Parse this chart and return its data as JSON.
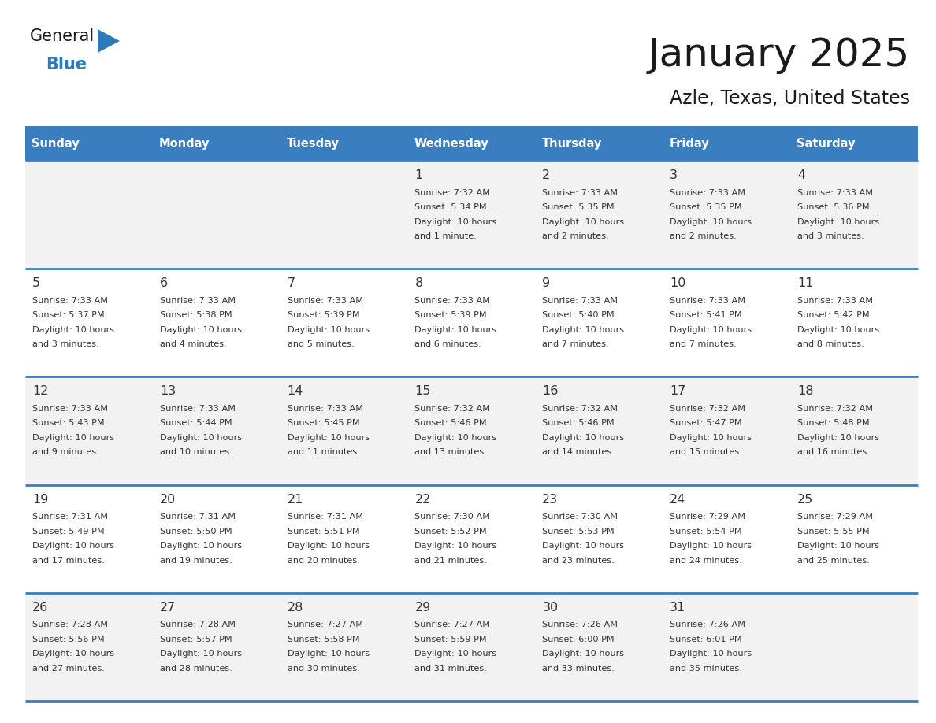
{
  "title": "January 2025",
  "subtitle": "Azle, Texas, United States",
  "header_bg": "#3a7ebf",
  "header_text": "#ffffff",
  "row_bg_odd": "#f2f2f2",
  "row_bg_even": "#ffffff",
  "cell_border": "#3a7ebf",
  "day_names": [
    "Sunday",
    "Monday",
    "Tuesday",
    "Wednesday",
    "Thursday",
    "Friday",
    "Saturday"
  ],
  "days": [
    {
      "day": 1,
      "col": 3,
      "row": 0,
      "sunrise": "7:32 AM",
      "sunset": "5:34 PM",
      "daylight": "10 hours and 1 minute."
    },
    {
      "day": 2,
      "col": 4,
      "row": 0,
      "sunrise": "7:33 AM",
      "sunset": "5:35 PM",
      "daylight": "10 hours and 2 minutes."
    },
    {
      "day": 3,
      "col": 5,
      "row": 0,
      "sunrise": "7:33 AM",
      "sunset": "5:35 PM",
      "daylight": "10 hours and 2 minutes."
    },
    {
      "day": 4,
      "col": 6,
      "row": 0,
      "sunrise": "7:33 AM",
      "sunset": "5:36 PM",
      "daylight": "10 hours and 3 minutes."
    },
    {
      "day": 5,
      "col": 0,
      "row": 1,
      "sunrise": "7:33 AM",
      "sunset": "5:37 PM",
      "daylight": "10 hours and 3 minutes."
    },
    {
      "day": 6,
      "col": 1,
      "row": 1,
      "sunrise": "7:33 AM",
      "sunset": "5:38 PM",
      "daylight": "10 hours and 4 minutes."
    },
    {
      "day": 7,
      "col": 2,
      "row": 1,
      "sunrise": "7:33 AM",
      "sunset": "5:39 PM",
      "daylight": "10 hours and 5 minutes."
    },
    {
      "day": 8,
      "col": 3,
      "row": 1,
      "sunrise": "7:33 AM",
      "sunset": "5:39 PM",
      "daylight": "10 hours and 6 minutes."
    },
    {
      "day": 9,
      "col": 4,
      "row": 1,
      "sunrise": "7:33 AM",
      "sunset": "5:40 PM",
      "daylight": "10 hours and 7 minutes."
    },
    {
      "day": 10,
      "col": 5,
      "row": 1,
      "sunrise": "7:33 AM",
      "sunset": "5:41 PM",
      "daylight": "10 hours and 7 minutes."
    },
    {
      "day": 11,
      "col": 6,
      "row": 1,
      "sunrise": "7:33 AM",
      "sunset": "5:42 PM",
      "daylight": "10 hours and 8 minutes."
    },
    {
      "day": 12,
      "col": 0,
      "row": 2,
      "sunrise": "7:33 AM",
      "sunset": "5:43 PM",
      "daylight": "10 hours and 9 minutes."
    },
    {
      "day": 13,
      "col": 1,
      "row": 2,
      "sunrise": "7:33 AM",
      "sunset": "5:44 PM",
      "daylight": "10 hours and 10 minutes."
    },
    {
      "day": 14,
      "col": 2,
      "row": 2,
      "sunrise": "7:33 AM",
      "sunset": "5:45 PM",
      "daylight": "10 hours and 11 minutes."
    },
    {
      "day": 15,
      "col": 3,
      "row": 2,
      "sunrise": "7:32 AM",
      "sunset": "5:46 PM",
      "daylight": "10 hours and 13 minutes."
    },
    {
      "day": 16,
      "col": 4,
      "row": 2,
      "sunrise": "7:32 AM",
      "sunset": "5:46 PM",
      "daylight": "10 hours and 14 minutes."
    },
    {
      "day": 17,
      "col": 5,
      "row": 2,
      "sunrise": "7:32 AM",
      "sunset": "5:47 PM",
      "daylight": "10 hours and 15 minutes."
    },
    {
      "day": 18,
      "col": 6,
      "row": 2,
      "sunrise": "7:32 AM",
      "sunset": "5:48 PM",
      "daylight": "10 hours and 16 minutes."
    },
    {
      "day": 19,
      "col": 0,
      "row": 3,
      "sunrise": "7:31 AM",
      "sunset": "5:49 PM",
      "daylight": "10 hours and 17 minutes."
    },
    {
      "day": 20,
      "col": 1,
      "row": 3,
      "sunrise": "7:31 AM",
      "sunset": "5:50 PM",
      "daylight": "10 hours and 19 minutes."
    },
    {
      "day": 21,
      "col": 2,
      "row": 3,
      "sunrise": "7:31 AM",
      "sunset": "5:51 PM",
      "daylight": "10 hours and 20 minutes."
    },
    {
      "day": 22,
      "col": 3,
      "row": 3,
      "sunrise": "7:30 AM",
      "sunset": "5:52 PM",
      "daylight": "10 hours and 21 minutes."
    },
    {
      "day": 23,
      "col": 4,
      "row": 3,
      "sunrise": "7:30 AM",
      "sunset": "5:53 PM",
      "daylight": "10 hours and 23 minutes."
    },
    {
      "day": 24,
      "col": 5,
      "row": 3,
      "sunrise": "7:29 AM",
      "sunset": "5:54 PM",
      "daylight": "10 hours and 24 minutes."
    },
    {
      "day": 25,
      "col": 6,
      "row": 3,
      "sunrise": "7:29 AM",
      "sunset": "5:55 PM",
      "daylight": "10 hours and 25 minutes."
    },
    {
      "day": 26,
      "col": 0,
      "row": 4,
      "sunrise": "7:28 AM",
      "sunset": "5:56 PM",
      "daylight": "10 hours and 27 minutes."
    },
    {
      "day": 27,
      "col": 1,
      "row": 4,
      "sunrise": "7:28 AM",
      "sunset": "5:57 PM",
      "daylight": "10 hours and 28 minutes."
    },
    {
      "day": 28,
      "col": 2,
      "row": 4,
      "sunrise": "7:27 AM",
      "sunset": "5:58 PM",
      "daylight": "10 hours and 30 minutes."
    },
    {
      "day": 29,
      "col": 3,
      "row": 4,
      "sunrise": "7:27 AM",
      "sunset": "5:59 PM",
      "daylight": "10 hours and 31 minutes."
    },
    {
      "day": 30,
      "col": 4,
      "row": 4,
      "sunrise": "7:26 AM",
      "sunset": "6:00 PM",
      "daylight": "10 hours and 33 minutes."
    },
    {
      "day": 31,
      "col": 5,
      "row": 4,
      "sunrise": "7:26 AM",
      "sunset": "6:01 PM",
      "daylight": "10 hours and 35 minutes."
    }
  ],
  "logo_color_general": "#1a1a1a",
  "logo_color_blue": "#2b7bba",
  "logo_triangle_color": "#2b7bba"
}
